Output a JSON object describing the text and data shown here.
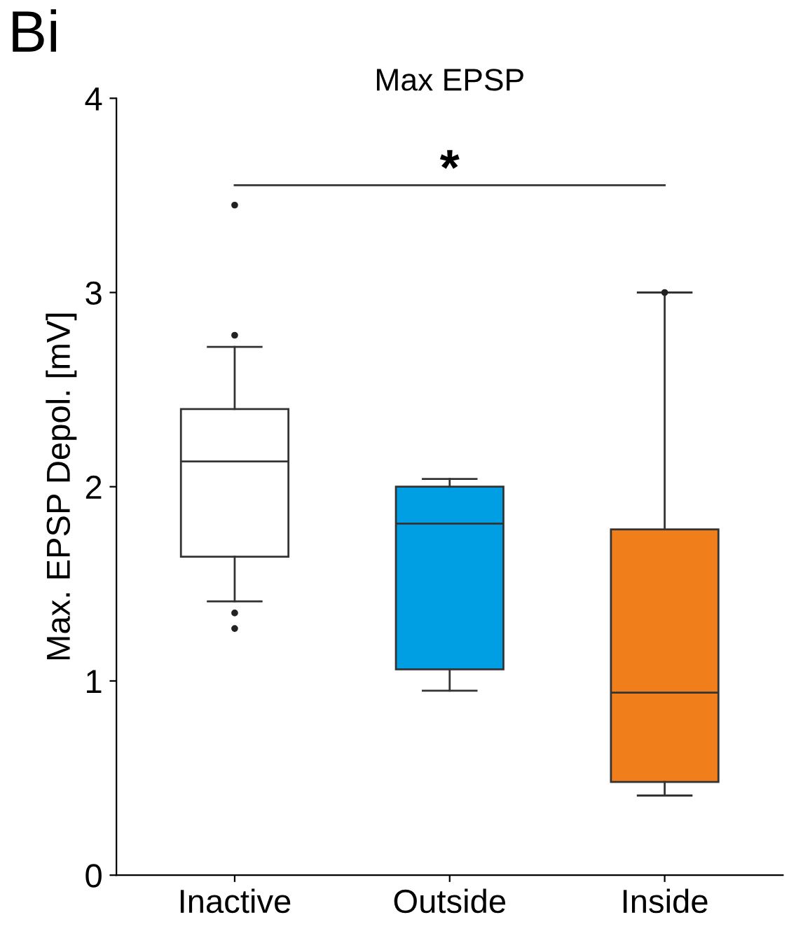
{
  "chart_data": {
    "type": "box",
    "title": "Max EPSP",
    "ylabel": "Max. EPSP Depol. [mV]",
    "categories": [
      "Inactive",
      "Outside",
      "Inside"
    ],
    "colors": [
      "#ffffff",
      "#009fe3",
      "#f07e1a"
    ],
    "boxes": [
      {
        "low": 1.41,
        "q1": 1.64,
        "median": 2.13,
        "q3": 2.4,
        "high": 2.72,
        "outliers": [
          3.45,
          2.78,
          1.35,
          1.27
        ]
      },
      {
        "low": 0.95,
        "q1": 1.06,
        "median": 1.81,
        "q3": 2.0,
        "high": 2.04
      },
      {
        "low": 0.41,
        "q1": 0.48,
        "median": 0.94,
        "q3": 1.78,
        "high": 3.0,
        "outliers": [
          3.0
        ]
      }
    ],
    "ylim": [
      0,
      4
    ],
    "yticks": [
      0,
      1,
      2,
      3,
      4
    ],
    "grid": false,
    "annotations": [
      "Bi",
      "*"
    ]
  }
}
